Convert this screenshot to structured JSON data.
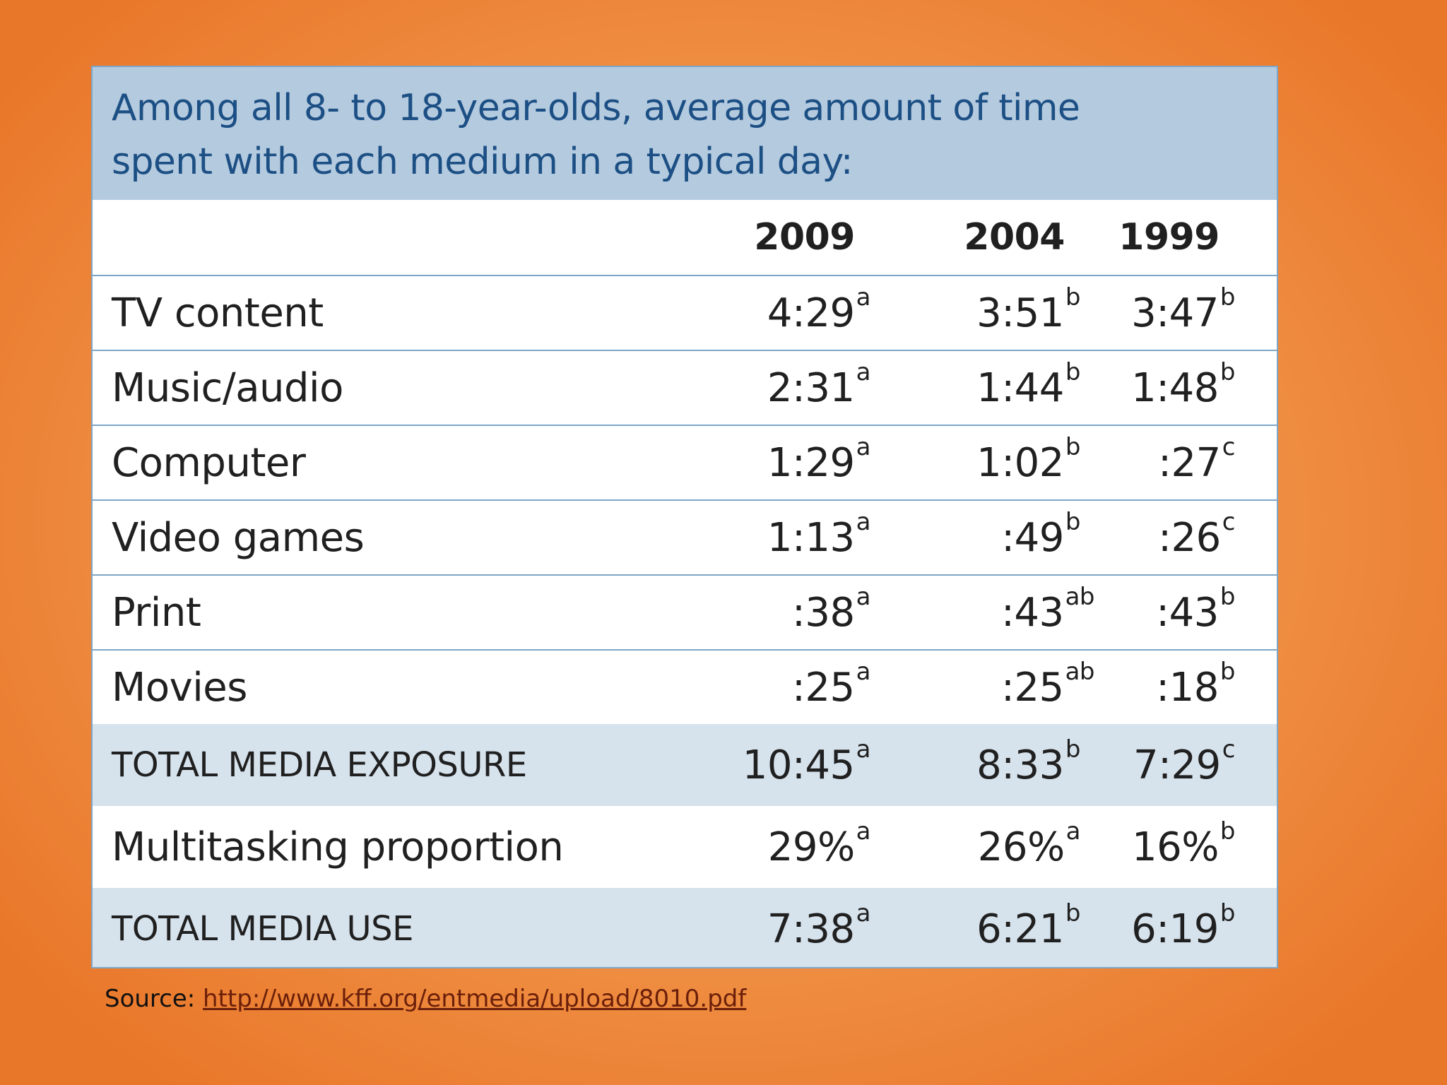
{
  "chart_data": {
    "type": "table",
    "title_lines": [
      "Among all 8- to 18-year-olds, average amount of time",
      "spent with each medium in a typical day:"
    ],
    "columns": [
      "2009",
      "2004",
      "1999"
    ],
    "rows": [
      {
        "label": "TV content",
        "values": [
          "4:29",
          "3:51",
          "3:47"
        ],
        "sup": [
          "a",
          "b",
          "b"
        ]
      },
      {
        "label": "Music/audio",
        "values": [
          "2:31",
          "1:44",
          "1:48"
        ],
        "sup": [
          "a",
          "b",
          "b"
        ]
      },
      {
        "label": "Computer",
        "values": [
          "1:29",
          "1:02",
          ":27"
        ],
        "sup": [
          "a",
          "b",
          "c"
        ]
      },
      {
        "label": "Video games",
        "values": [
          "1:13",
          ":49",
          ":26"
        ],
        "sup": [
          "a",
          "b",
          "c"
        ]
      },
      {
        "label": "Print",
        "values": [
          ":38",
          ":43",
          ":43"
        ],
        "sup": [
          "a",
          "ab",
          "b"
        ]
      },
      {
        "label": "Movies",
        "values": [
          ":25",
          ":25",
          ":18"
        ],
        "sup": [
          "a",
          "ab",
          "b"
        ]
      },
      {
        "label": "TOTAL MEDIA EXPOSURE",
        "values": [
          "10:45",
          "8:33",
          "7:29"
        ],
        "sup": [
          "a",
          "b",
          "c"
        ]
      },
      {
        "label": "Multitasking proportion",
        "values": [
          "29%",
          "26%",
          "16%"
        ],
        "sup": [
          "a",
          "a",
          "b"
        ]
      },
      {
        "label": "TOTAL MEDIA USE",
        "values": [
          "7:38",
          "6:21",
          "6:19"
        ],
        "sup": [
          "a",
          "b",
          "b"
        ]
      }
    ]
  },
  "source": {
    "label": "Source: ",
    "link_text": "http://www.kff.org/entmedia/upload/8010.pdf"
  },
  "colors": {
    "background": "#ee8b3f",
    "title_bar": "#b4cadf",
    "title_text": "#1c4f84",
    "shaded_row": "#d6e2ec",
    "border": "#7ea6c8"
  }
}
